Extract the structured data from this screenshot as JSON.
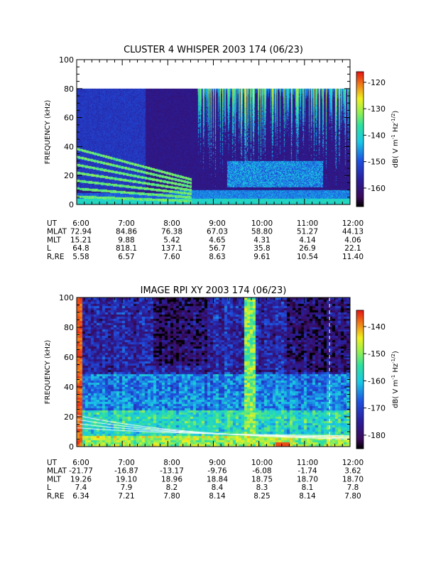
{
  "chart_data": [
    {
      "type": "heatmap",
      "title": "CLUSTER 4 WHISPER 2003 174 (06/23)",
      "ylabel": "FREQUENCY (kHz)",
      "ylim": [
        0,
        100
      ],
      "yticks": [
        "0",
        "20",
        "40",
        "60",
        "80",
        "100"
      ],
      "xlim": [
        "6:00",
        "12:00"
      ],
      "xticks": [
        "6:00",
        "7:00",
        "8:00",
        "9:00",
        "10:00",
        "11:00",
        "12:00"
      ],
      "data_top_khz": 80,
      "colorbar": {
        "label_parts": [
          "dB( V m",
          "-1",
          " Hz",
          "-1/2",
          ")"
        ],
        "range": [
          -167,
          -116
        ],
        "ticks": [
          "-120",
          "-130",
          "-140",
          "-150",
          "-160"
        ],
        "tick_values": [
          -120,
          -130,
          -140,
          -150,
          -160
        ]
      },
      "ephemeris": [
        {
          "label": "UT",
          "values": [
            "6:00",
            "7:00",
            "8:00",
            "9:00",
            "10:00",
            "11:00",
            "12:00"
          ]
        },
        {
          "label": "MLAT",
          "values": [
            "72.94",
            "84.86",
            "76.38",
            "67.03",
            "58.80",
            "51.27",
            "44.13"
          ]
        },
        {
          "label": "MLT",
          "values": [
            "15.21",
            "9.88",
            "5.42",
            "4.65",
            "4.31",
            "4.14",
            "4.06"
          ]
        },
        {
          "label": "L",
          "values": [
            "64.8",
            "818.1",
            "137.1",
            "56.7",
            "35.8",
            "26.9",
            "22.1"
          ]
        },
        {
          "label": "R,RE",
          "values": [
            "5.58",
            "6.57",
            "7.60",
            "8.63",
            "9.61",
            "10.54",
            "11.40"
          ]
        }
      ]
    },
    {
      "type": "heatmap",
      "title": "IMAGE RPI XY 2003 174 (06/23)",
      "ylabel": "FREQUENCY (kHz)",
      "ylim": [
        0,
        100
      ],
      "yticks": [
        "0",
        "20",
        "40",
        "60",
        "80",
        "100"
      ],
      "xlim": [
        "6:00",
        "12:00"
      ],
      "xticks": [
        "6:00",
        "7:00",
        "8:00",
        "9:00",
        "10:00",
        "11:00",
        "12:00"
      ],
      "colorbar": {
        "label_parts": [
          "dB( V m",
          "-1",
          " Hz",
          "-1/2",
          ")"
        ],
        "range": [
          -185,
          -134
        ],
        "ticks": [
          "-140",
          "-150",
          "-160",
          "-170",
          "-180"
        ],
        "tick_values": [
          -140,
          -150,
          -160,
          -170,
          -180
        ]
      },
      "ephemeris": [
        {
          "label": "UT",
          "values": [
            "6:00",
            "7:00",
            "8:00",
            "9:00",
            "10:00",
            "11:00",
            "12:00"
          ]
        },
        {
          "label": "MLAT",
          "values": [
            "-21.77",
            "-16.87",
            "-13.17",
            "-9.76",
            "-6.08",
            "-1.74",
            "3.62"
          ]
        },
        {
          "label": "MLT",
          "values": [
            "19.26",
            "19.10",
            "18.96",
            "18.84",
            "18.75",
            "18.70",
            "18.70"
          ]
        },
        {
          "label": "L",
          "values": [
            "7.4",
            "7.9",
            "8.2",
            "8.4",
            "8.3",
            "8.1",
            "7.8"
          ]
        },
        {
          "label": "R,RE",
          "values": [
            "6.34",
            "7.21",
            "7.80",
            "8.14",
            "8.25",
            "8.14",
            "7.80"
          ]
        }
      ]
    }
  ]
}
